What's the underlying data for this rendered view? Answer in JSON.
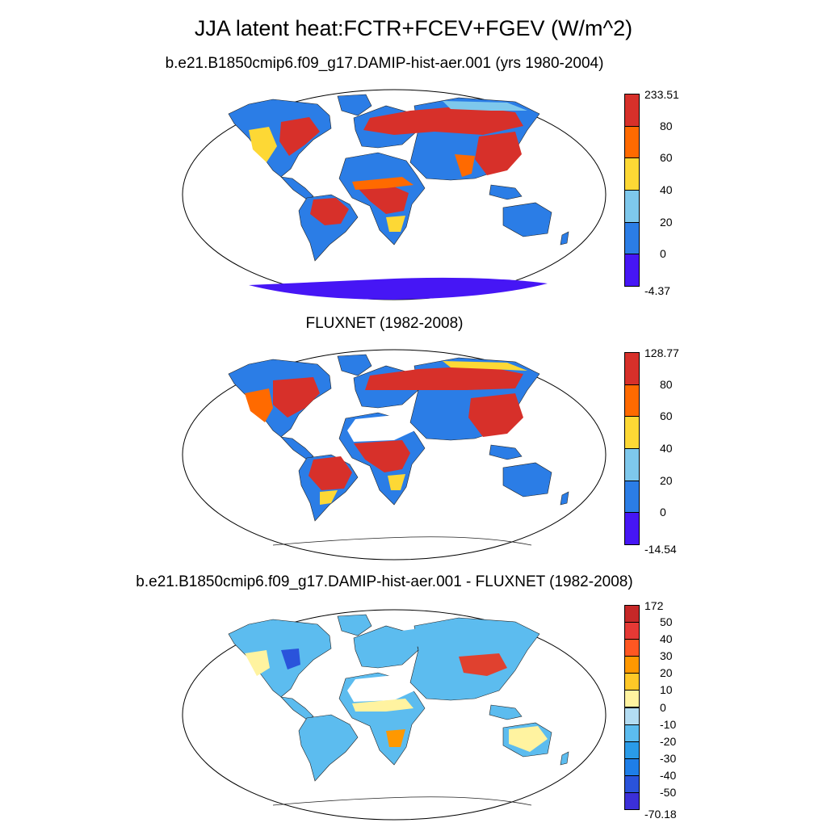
{
  "figure": {
    "title": "JJA latent heat:FCTR+FCEV+FGEV (W/m^2)"
  },
  "panels": [
    {
      "title": "b.e21.B1850cmip6.f09_g17.DAMIP-hist-aer.001 (yrs 1980-2004)",
      "colorbar": {
        "labels": [
          "233.51",
          "80",
          "60",
          "40",
          "20",
          "0",
          "-4.37"
        ],
        "colors": [
          "#d7302a",
          "#ff6a00",
          "#fdd835",
          "#7ec8ec",
          "#2b7de6",
          "#4616f5"
        ]
      },
      "palette": {
        "red": "#d7302a",
        "orange": "#ff6a00",
        "yellow": "#fdd835",
        "lightblue": "#7ec8ec",
        "blue": "#2b7de6",
        "violet": "#4616f5"
      }
    },
    {
      "title": "FLUXNET (1982-2008)",
      "colorbar": {
        "labels": [
          "128.77",
          "80",
          "60",
          "40",
          "20",
          "0",
          "-14.54"
        ],
        "colors": [
          "#d7302a",
          "#ff6a00",
          "#fdd835",
          "#7ec8ec",
          "#2b7de6",
          "#4616f5"
        ]
      },
      "palette": {
        "red": "#d7302a",
        "orange": "#ff6a00",
        "yellow": "#fdd835",
        "lightblue": "#7ec8ec",
        "blue": "#2b7de6",
        "violet": "#4616f5"
      }
    },
    {
      "title": "b.e21.B1850cmip6.f09_g17.DAMIP-hist-aer.001 - FLUXNET (1982-2008)",
      "colorbar": {
        "labels": [
          "172",
          "50",
          "40",
          "30",
          "20",
          "10",
          "0",
          "-10",
          "-20",
          "-30",
          "-40",
          "-50",
          "-70.18"
        ],
        "colors": [
          "#c62828",
          "#e53935",
          "#ff5722",
          "#ff9800",
          "#ffc828",
          "#fff3a0",
          "#b3dcf2",
          "#5cbcef",
          "#2a9be8",
          "#1e7ee8",
          "#2a53db",
          "#3b2fd8"
        ]
      },
      "palette": {
        "red": "#e0412f",
        "orange": "#ff9800",
        "yellow": "#fff3a0",
        "lightblue": "#b3dcf2",
        "blue": "#5cbcef",
        "violet": "#2a53db"
      }
    }
  ]
}
